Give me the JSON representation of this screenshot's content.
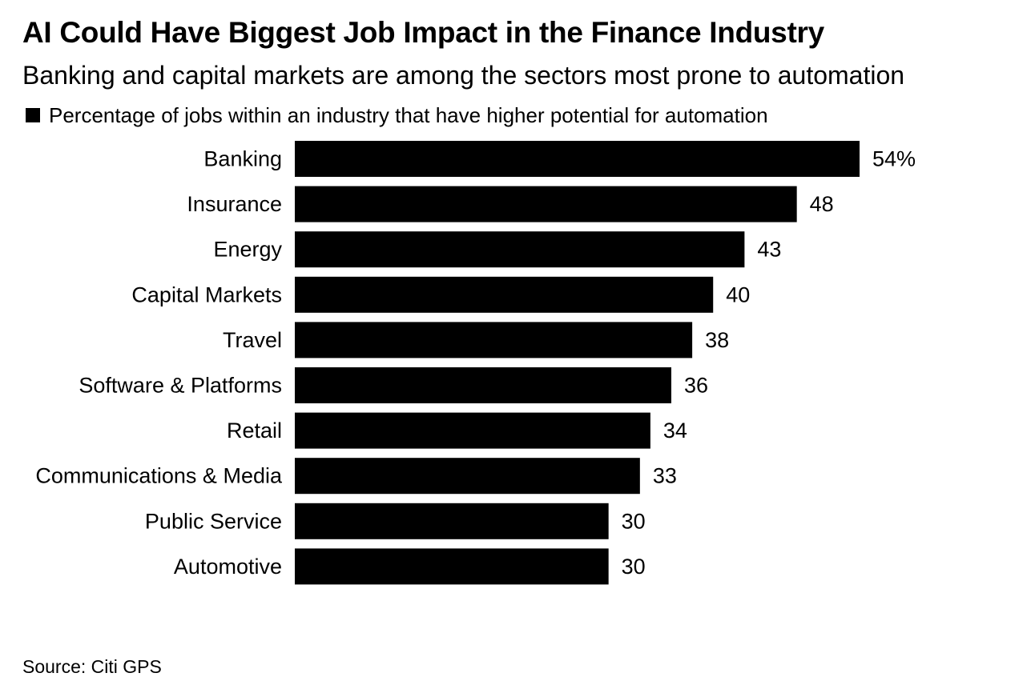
{
  "header": {
    "title": "AI Could Have Biggest Job Impact in the Finance Industry",
    "subtitle": "Banking and capital markets are among the sectors most prone to automation"
  },
  "footer": {
    "source": "Source: Citi GPS"
  },
  "chart_data": {
    "type": "bar",
    "orientation": "horizontal",
    "title": "AI Could Have Biggest Job Impact in the Finance Industry",
    "subtitle": "Banking and capital markets are among the sectors most prone to automation",
    "legend": {
      "position": "top-left",
      "entries": [
        "Percentage of jobs within an industry that have higher potential for automation"
      ]
    },
    "categories": [
      "Banking",
      "Insurance",
      "Energy",
      "Capital Markets",
      "Travel",
      "Software & Platforms",
      "Retail",
      "Communications & Media",
      "Public Service",
      "Automotive"
    ],
    "series": [
      {
        "name": "Percentage of jobs within an industry that have higher potential for automation",
        "values": [
          54,
          48,
          43,
          40,
          38,
          36,
          34,
          33,
          30,
          30
        ]
      }
    ],
    "value_labels": [
      "54%",
      "48",
      "43",
      "40",
      "38",
      "36",
      "34",
      "33",
      "30",
      "30"
    ],
    "bar_color": "#000000",
    "xlim": [
      0,
      54
    ],
    "grid": false,
    "xlabel": "",
    "ylabel": ""
  }
}
